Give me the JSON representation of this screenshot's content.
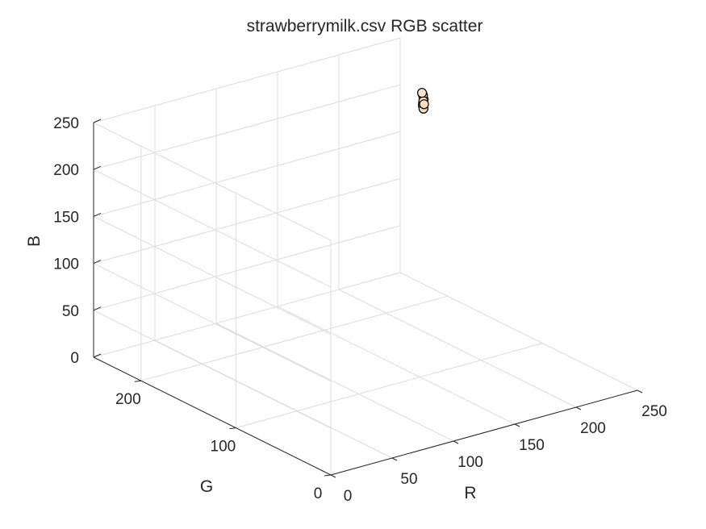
{
  "chart_data": {
    "type": "scatter",
    "projection": "3d",
    "title": "strawberrymilk.csv RGB scatter",
    "xlabel": "R",
    "ylabel": "G",
    "zlabel": "B",
    "xlim": [
      0,
      250
    ],
    "ylim": [
      0,
      250
    ],
    "zlim": [
      0,
      250
    ],
    "xticks": [
      0,
      50,
      100,
      150,
      200,
      250
    ],
    "yticks": [
      0,
      100,
      200
    ],
    "zticks": [
      0,
      50,
      100,
      150,
      200,
      250
    ],
    "grid": true,
    "points": [
      {
        "r": 249,
        "g": 224,
        "b": 198,
        "color": "#f9e0c6"
      },
      {
        "r": 247,
        "g": 222,
        "b": 196,
        "color": "#f7dec4"
      },
      {
        "r": 250,
        "g": 226,
        "b": 201,
        "color": "#fae2c9"
      },
      {
        "r": 246,
        "g": 221,
        "b": 194,
        "color": "#f6ddc2"
      },
      {
        "r": 248,
        "g": 223,
        "b": 197,
        "color": "#f8dfc5"
      },
      {
        "r": 245,
        "g": 219,
        "b": 192,
        "color": "#f5dbc0"
      },
      {
        "r": 250,
        "g": 227,
        "b": 203,
        "color": "#fae3cb"
      },
      {
        "r": 247,
        "g": 221,
        "b": 195,
        "color": "#f7ddc3"
      }
    ]
  }
}
